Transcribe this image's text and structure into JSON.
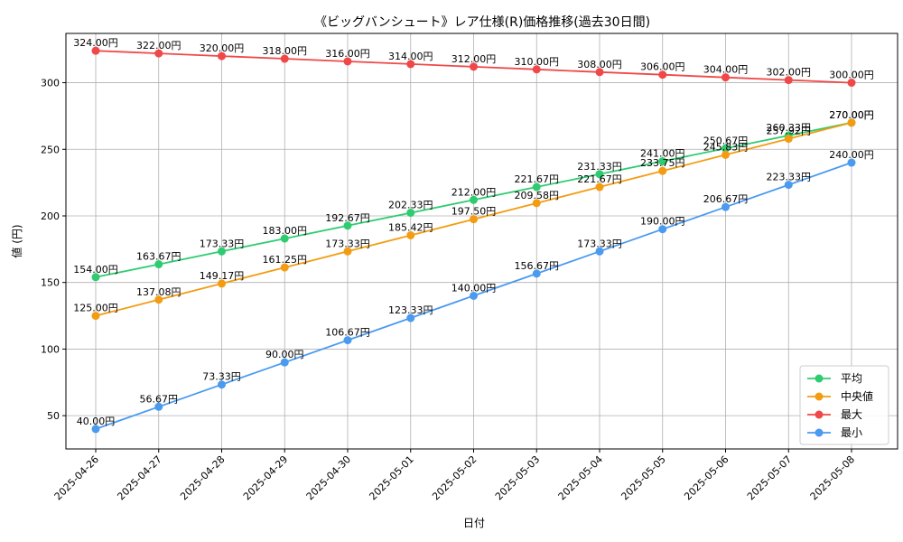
{
  "chart_data": {
    "type": "line",
    "title": "《ビッグバンシュート》レア仕様(R)価格推移(過去30日間)",
    "xlabel": "日付",
    "ylabel": "値 (円)",
    "categories": [
      "2025-04-26",
      "2025-04-27",
      "2025-04-28",
      "2025-04-29",
      "2025-04-30",
      "2025-05-01",
      "2025-05-02",
      "2025-05-03",
      "2025-05-04",
      "2025-05-05",
      "2025-05-06",
      "2025-05-07",
      "2025-05-08"
    ],
    "ylim": [
      25,
      337
    ],
    "yticks": [
      50,
      100,
      150,
      200,
      250,
      300
    ],
    "grid": true,
    "legend_position": "bottom-right",
    "label_suffix": "円",
    "series": [
      {
        "name": "平均",
        "color": "#2ecc71",
        "values": [
          154.0,
          163.67,
          173.33,
          183.0,
          192.67,
          202.33,
          212.0,
          221.67,
          231.33,
          241.0,
          250.67,
          260.33,
          270.0
        ]
      },
      {
        "name": "中央値",
        "color": "#f39c12",
        "values": [
          125.0,
          137.08,
          149.17,
          161.25,
          173.33,
          185.42,
          197.5,
          209.58,
          221.67,
          233.75,
          245.83,
          257.92,
          270.0
        ]
      },
      {
        "name": "最大",
        "color": "#f04848",
        "values": [
          324.0,
          322.0,
          320.0,
          318.0,
          316.0,
          314.0,
          312.0,
          310.0,
          308.0,
          306.0,
          304.0,
          302.0,
          300.0
        ]
      },
      {
        "name": "最小",
        "color": "#4a9af0",
        "values": [
          40.0,
          56.67,
          73.33,
          90.0,
          106.67,
          123.33,
          140.0,
          156.67,
          173.33,
          190.0,
          206.67,
          223.33,
          240.0
        ]
      }
    ]
  }
}
